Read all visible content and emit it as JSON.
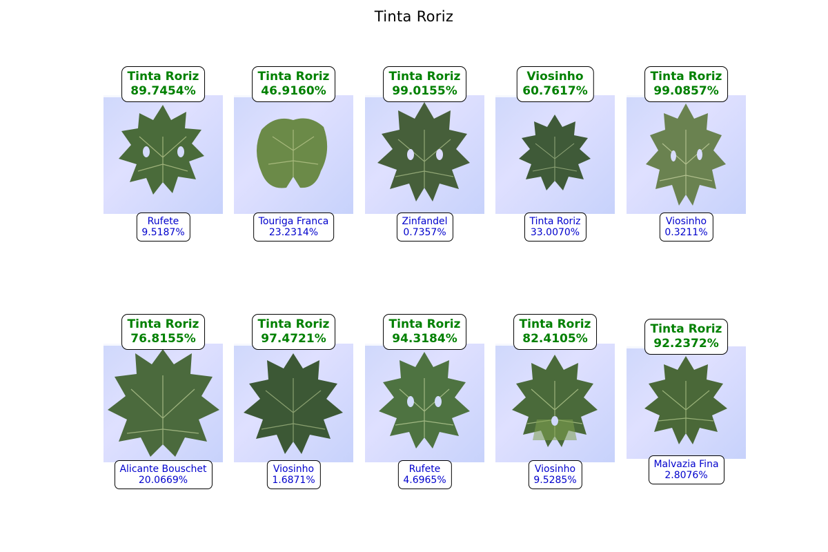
{
  "title": "Tinta Roriz",
  "colors": {
    "prediction": "#008000",
    "secondary": "#0000cc"
  },
  "cells": [
    {
      "top_name": "Tinta Roriz",
      "top_pct": "89.7454%",
      "bot_name": "Rufete",
      "bot_pct": "9.5187%",
      "leaf": "leaf-image"
    },
    {
      "top_name": "Tinta Roriz",
      "top_pct": "46.9160%",
      "bot_name": "Touriga Franca",
      "bot_pct": "23.2314%",
      "leaf": "leaf-image"
    },
    {
      "top_name": "Tinta Roriz",
      "top_pct": "99.0155%",
      "bot_name": "Zinfandel",
      "bot_pct": "0.7357%",
      "leaf": "leaf-image"
    },
    {
      "top_name": "Viosinho",
      "top_pct": "60.7617%",
      "bot_name": "Tinta Roriz",
      "bot_pct": "33.0070%",
      "leaf": "leaf-image"
    },
    {
      "top_name": "Tinta Roriz",
      "top_pct": "99.0857%",
      "bot_name": "Viosinho",
      "bot_pct": "0.3211%",
      "leaf": "leaf-image"
    },
    {
      "top_name": "Tinta Roriz",
      "top_pct": "76.8155%",
      "bot_name": "Alicante Bouschet",
      "bot_pct": "20.0669%",
      "leaf": "leaf-image"
    },
    {
      "top_name": "Tinta Roriz",
      "top_pct": "97.4721%",
      "bot_name": "Viosinho",
      "bot_pct": "1.6871%",
      "leaf": "leaf-image"
    },
    {
      "top_name": "Tinta Roriz",
      "top_pct": "94.3184%",
      "bot_name": "Rufete",
      "bot_pct": "4.6965%",
      "leaf": "leaf-image"
    },
    {
      "top_name": "Tinta Roriz",
      "top_pct": "82.4105%",
      "bot_name": "Viosinho",
      "bot_pct": "9.5285%",
      "leaf": "leaf-image"
    },
    {
      "top_name": "Tinta Roriz",
      "top_pct": "92.2372%",
      "bot_name": "Malvazia Fina",
      "bot_pct": "2.8076%",
      "leaf": "leaf-image"
    }
  ]
}
